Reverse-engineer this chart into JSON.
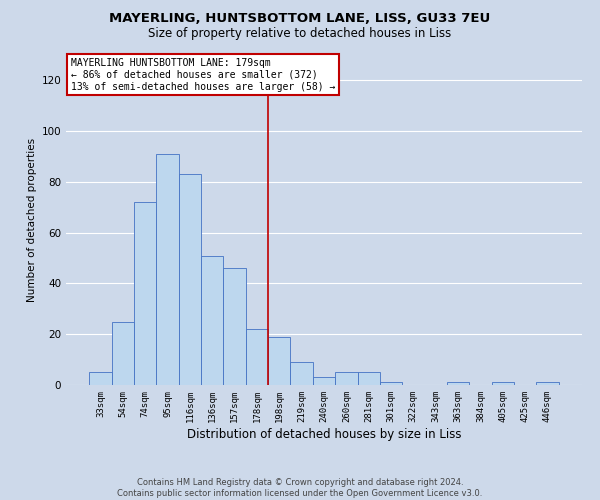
{
  "title": "MAYERLING, HUNTSBOTTOM LANE, LISS, GU33 7EU",
  "subtitle": "Size of property relative to detached houses in Liss",
  "xlabel": "Distribution of detached houses by size in Liss",
  "ylabel": "Number of detached properties",
  "footer_line1": "Contains HM Land Registry data © Crown copyright and database right 2024.",
  "footer_line2": "Contains public sector information licensed under the Open Government Licence v3.0.",
  "annotation_line1": "MAYERLING HUNTSBOTTOM LANE: 179sqm",
  "annotation_line2": "← 86% of detached houses are smaller (372)",
  "annotation_line3": "13% of semi-detached houses are larger (58) →",
  "bar_labels": [
    "33sqm",
    "54sqm",
    "74sqm",
    "95sqm",
    "116sqm",
    "136sqm",
    "157sqm",
    "178sqm",
    "198sqm",
    "219sqm",
    "240sqm",
    "260sqm",
    "281sqm",
    "301sqm",
    "322sqm",
    "343sqm",
    "363sqm",
    "384sqm",
    "405sqm",
    "425sqm",
    "446sqm"
  ],
  "bar_values": [
    5,
    25,
    72,
    91,
    83,
    51,
    46,
    22,
    19,
    9,
    3,
    5,
    5,
    1,
    0,
    0,
    1,
    0,
    1,
    0,
    1
  ],
  "bar_color": "#bdd7ee",
  "bar_edge_color": "#4472c4",
  "vline_x": 7.5,
  "vline_color": "#c00000",
  "ylim": [
    0,
    130
  ],
  "yticks": [
    0,
    20,
    40,
    60,
    80,
    100,
    120
  ],
  "background_color": "#cdd9ea",
  "plot_bg_color": "#cdd9ea",
  "grid_color": "#ffffff",
  "annotation_box_edge_color": "#c00000",
  "annotation_box_face_color": "#ffffff",
  "title_fontsize": 9.5,
  "subtitle_fontsize": 8.5,
  "ylabel_fontsize": 7.5,
  "xlabel_fontsize": 8.5,
  "tick_fontsize": 6.5,
  "ytick_fontsize": 7.5,
  "footer_fontsize": 6.0,
  "annot_fontsize": 7.0
}
